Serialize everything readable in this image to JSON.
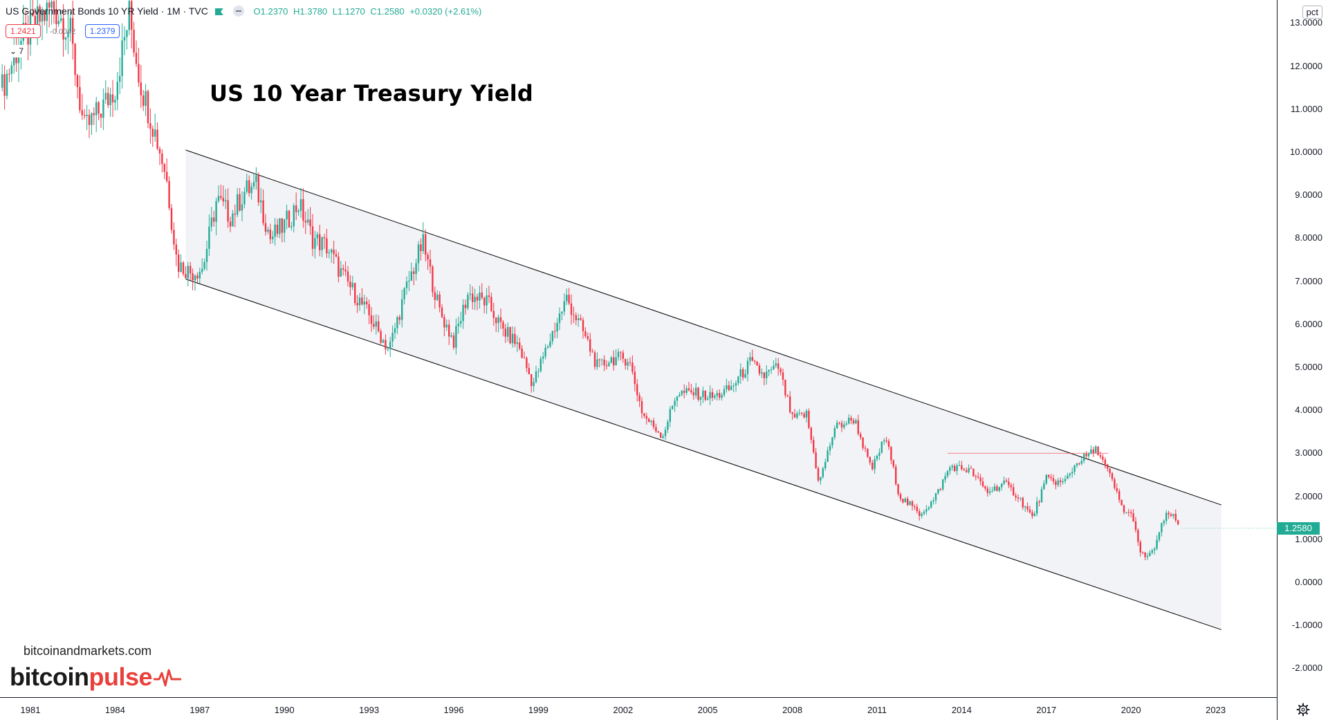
{
  "legend": {
    "symbol": "US Government Bonds 10 YR Yield · 1M · TVC",
    "open": "O1.2370",
    "high": "H1.3780",
    "low": "L1.1270",
    "close": "C1.2580",
    "change": "+0.0320 (+2.61%)",
    "bid": "1.2421",
    "spread": "-0.0042",
    "ask": "1.2379",
    "collapse_label": "7"
  },
  "annotation_title": "US 10 Year Treasury Yield",
  "branding": {
    "site": "bitcoinandmarkets.com",
    "logo_part1": "bitcoin",
    "logo_part2": "pulse"
  },
  "price_scale": {
    "unit": "pct",
    "current_price": "1.2580",
    "current_price_value": 1.258
  },
  "colors": {
    "up": "#22ab94",
    "down": "#f23645",
    "channel_fill": "#f2f3f7",
    "channel_line": "#000000",
    "resistance": "#f23645"
  },
  "chart_data": {
    "type": "candlestick",
    "title": "US 10 Year Treasury Yield",
    "ylabel": "pct",
    "ylim": [
      -2.5,
      13.3
    ],
    "xlim": [
      1980.0,
      2024.25
    ],
    "y_ticks": [
      "13.0000",
      "12.0000",
      "11.0000",
      "10.0000",
      "9.0000",
      "8.0000",
      "7.0000",
      "6.0000",
      "5.0000",
      "4.0000",
      "3.0000",
      "2.0000",
      "1.0000",
      "0.0000",
      "-1.0000",
      "-2.0000"
    ],
    "x_ticks": [
      "1981",
      "1984",
      "1987",
      "1990",
      "1993",
      "1996",
      "1999",
      "2002",
      "2005",
      "2008",
      "2011",
      "2014",
      "2017",
      "2020",
      "2023"
    ],
    "series_points": [
      [
        1980.0,
        11.5
      ],
      [
        1980.6,
        12.5
      ],
      [
        1981.2,
        13.0
      ],
      [
        1981.8,
        13.4
      ],
      [
        1982.4,
        12.8
      ],
      [
        1982.9,
        10.5
      ],
      [
        1983.5,
        11.0
      ],
      [
        1984.0,
        11.5
      ],
      [
        1984.5,
        13.2
      ],
      [
        1984.9,
        11.6
      ],
      [
        1985.4,
        10.5
      ],
      [
        1985.8,
        9.5
      ],
      [
        1986.2,
        7.4
      ],
      [
        1986.7,
        7.2
      ],
      [
        1987.1,
        7.3
      ],
      [
        1987.6,
        8.9
      ],
      [
        1988.1,
        8.5
      ],
      [
        1988.6,
        9.1
      ],
      [
        1989.0,
        9.2
      ],
      [
        1989.5,
        8.0
      ],
      [
        1990.0,
        8.3
      ],
      [
        1990.5,
        8.8
      ],
      [
        1991.0,
        8.0
      ],
      [
        1991.5,
        7.8
      ],
      [
        1992.0,
        7.2
      ],
      [
        1992.5,
        6.7
      ],
      [
        1993.0,
        6.2
      ],
      [
        1993.7,
        5.4
      ],
      [
        1994.3,
        6.8
      ],
      [
        1994.9,
        7.9
      ],
      [
        1995.5,
        6.3
      ],
      [
        1996.0,
        5.6
      ],
      [
        1996.5,
        6.7
      ],
      [
        1997.2,
        6.5
      ],
      [
        1997.7,
        5.9
      ],
      [
        1998.3,
        5.5
      ],
      [
        1998.8,
        4.6
      ],
      [
        1999.5,
        5.8
      ],
      [
        2000.0,
        6.6
      ],
      [
        2000.6,
        5.8
      ],
      [
        2001.1,
        5.0
      ],
      [
        2001.6,
        5.2
      ],
      [
        2002.2,
        5.2
      ],
      [
        2002.7,
        3.9
      ],
      [
        2003.4,
        3.4
      ],
      [
        2003.9,
        4.4
      ],
      [
        2004.5,
        4.4
      ],
      [
        2005.2,
        4.3
      ],
      [
        2005.8,
        4.5
      ],
      [
        2006.5,
        5.1
      ],
      [
        2007.0,
        4.8
      ],
      [
        2007.5,
        5.0
      ],
      [
        2008.0,
        3.8
      ],
      [
        2008.5,
        3.9
      ],
      [
        2008.95,
        2.3
      ],
      [
        2009.5,
        3.6
      ],
      [
        2010.2,
        3.8
      ],
      [
        2010.8,
        2.6
      ],
      [
        2011.3,
        3.4
      ],
      [
        2011.8,
        2.0
      ],
      [
        2012.5,
        1.6
      ],
      [
        2013.0,
        1.9
      ],
      [
        2013.6,
        2.7
      ],
      [
        2014.3,
        2.6
      ],
      [
        2014.9,
        2.1
      ],
      [
        2015.5,
        2.3
      ],
      [
        2016.0,
        2.0
      ],
      [
        2016.5,
        1.5
      ],
      [
        2017.0,
        2.4
      ],
      [
        2017.6,
        2.3
      ],
      [
        2018.1,
        2.8
      ],
      [
        2018.8,
        3.1
      ],
      [
        2019.3,
        2.4
      ],
      [
        2019.7,
        1.7
      ],
      [
        2020.1,
        1.5
      ],
      [
        2020.3,
        0.65
      ],
      [
        2020.7,
        0.6
      ],
      [
        2021.2,
        1.5
      ],
      [
        2021.4,
        1.6
      ],
      [
        2021.7,
        1.3
      ]
    ],
    "channel": {
      "upper_start": [
        1986.5,
        10.05
      ],
      "upper_end": [
        2023.2,
        1.8
      ],
      "lower_start": [
        1986.5,
        7.05
      ],
      "lower_end": [
        2023.2,
        -1.1
      ]
    },
    "resistance_line": {
      "x_start": 2013.5,
      "x_end": 2019.2,
      "y": 3.0
    },
    "last_close": 1.258
  }
}
